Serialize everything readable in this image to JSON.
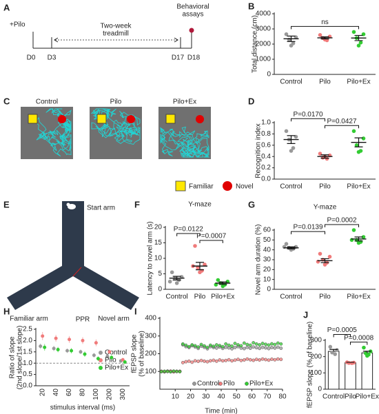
{
  "panel_labels": [
    "A",
    "B",
    "C",
    "D",
    "E",
    "F",
    "G",
    "H",
    "I",
    "J"
  ],
  "timeline": {
    "drug": "+Pilo",
    "training": [
      "Two-week",
      "treadmill"
    ],
    "test": [
      "Behavioral",
      "assays"
    ],
    "days": [
      "D0",
      "D3",
      "D17",
      "D18"
    ]
  },
  "tracks": {
    "panels": [
      "Control",
      "Pilo",
      "Pilo+Ex"
    ],
    "legend": [
      "Familiar",
      "Novel"
    ]
  },
  "maze": {
    "arms": [
      "Start arm",
      "Familiar arm",
      "Novel arm"
    ]
  },
  "chart_data": [
    {
      "type": "dot",
      "ylabel": "Total distance (cm)",
      "ylim": [
        0,
        4000
      ],
      "yticks": [
        0,
        1000,
        2000,
        3000,
        4000
      ],
      "annotations": [
        "ns"
      ],
      "groups": [
        {
          "name": "Control",
          "color": "#999999",
          "values": [
            2650,
            2450,
            2300,
            2050,
            1900
          ],
          "mean": 2350,
          "sem": 180
        },
        {
          "name": "Pilo",
          "color": "#f07b7b",
          "values": [
            2600,
            2500,
            2400,
            2250,
            2300
          ],
          "mean": 2410,
          "sem": 70
        },
        {
          "name": "Pilo+Ex",
          "color": "#33cc33",
          "values": [
            2800,
            2650,
            2400,
            2100,
            1900
          ],
          "mean": 2400,
          "sem": 170
        }
      ]
    },
    {
      "type": "dot",
      "ylabel": "Recognition index",
      "ylim": [
        0,
        1
      ],
      "yticks": [
        {
          "value": 0,
          "label": "0.0"
        },
        0.2,
        0.4,
        0.6,
        0.8,
        {
          "value": 1,
          "label": "1.0"
        }
      ],
      "annotations": [
        "P=0.0170",
        "P=0.0427"
      ],
      "groups": [
        {
          "name": "Control",
          "color": "#999999",
          "values": [
            0.85,
            0.75,
            0.7,
            0.55,
            0.5
          ],
          "mean": 0.7,
          "sem": 0.07
        },
        {
          "name": "Pilo",
          "color": "#f07b7b",
          "values": [
            0.45,
            0.42,
            0.38,
            0.36,
            0.4
          ],
          "mean": 0.4,
          "sem": 0.03
        },
        {
          "name": "Pilo+Ex",
          "color": "#33cc33",
          "values": [
            0.85,
            0.72,
            0.6,
            0.5,
            0.48
          ],
          "mean": 0.65,
          "sem": 0.08
        }
      ]
    },
    {
      "type": "dot",
      "title": "Y-maze",
      "ylabel": "Latency to novel arm (s)",
      "ylim": [
        0,
        20
      ],
      "yticks": [
        0,
        5,
        10,
        15,
        20
      ],
      "annotations": [
        "P=0.0122",
        "P=0.0007"
      ],
      "groups": [
        {
          "name": "Control",
          "color": "#999999",
          "values": [
            5.5,
            4,
            3.5,
            3,
            2,
            2.5
          ],
          "mean": 3.6,
          "sem": 0.6
        },
        {
          "name": "Pilo",
          "color": "#f07b7b",
          "values": [
            14,
            8,
            7,
            6,
            5.5,
            7.5
          ],
          "mean": 7.5,
          "sem": 1.2
        },
        {
          "name": "Pilo+Ex",
          "color": "#33cc33",
          "values": [
            3,
            2.5,
            2,
            1.5,
            1,
            1.5
          ],
          "mean": 2,
          "sem": 0.4
        }
      ]
    },
    {
      "type": "dot",
      "title": "Y-maze",
      "ylabel": "Novel arm duration (%)",
      "ylim": [
        0,
        60
      ],
      "yticks": [
        0,
        10,
        20,
        30,
        40,
        50,
        60
      ],
      "annotations": [
        "P=0.0139",
        "P=0.0002"
      ],
      "groups": [
        {
          "name": "Control",
          "color": "#999999",
          "values": [
            46,
            43,
            42,
            41,
            40,
            43
          ],
          "mean": 42,
          "sem": 1
        },
        {
          "name": "Pilo",
          "color": "#f07b7b",
          "values": [
            36,
            33,
            30,
            27,
            25,
            28
          ],
          "mean": 29,
          "sem": 2
        },
        {
          "name": "Pilo+Ex",
          "color": "#33cc33",
          "values": [
            60,
            53,
            50,
            48,
            47,
            50
          ],
          "mean": 51,
          "sem": 2
        }
      ]
    },
    {
      "type": "errorbar",
      "title": "PPR",
      "xlabel": "stimulus interval (ms)",
      "ylabel": [
        "Ratio of slope",
        "(2nd slope/1st slope)"
      ],
      "ylim": [
        0,
        2.5
      ],
      "yticks": [
        {
          "value": 0,
          "label": "0.0"
        },
        0.5,
        {
          "value": 1,
          "label": "1.0"
        },
        1.5,
        {
          "value": 2,
          "label": "2.0"
        },
        2.5
      ],
      "reference_line": 1,
      "categories": [
        "20",
        "40",
        "60",
        "80",
        "100",
        "200",
        "300"
      ],
      "series": [
        {
          "name": "Control",
          "color": "#999999",
          "values": [
            1.75,
            1.65,
            1.55,
            1.5,
            1.35,
            1.3,
            1.1
          ],
          "errors": [
            0.12,
            0.12,
            0.1,
            0.1,
            0.1,
            0.1,
            0.08
          ]
        },
        {
          "name": "Pilo",
          "color": "#f07b7b",
          "values": [
            2.2,
            2.1,
            2.05,
            2,
            1.9,
            1.5,
            1.15
          ],
          "errors": [
            0.18,
            0.15,
            0.15,
            0.15,
            0.15,
            0.1,
            0.08
          ]
        },
        {
          "name": "Pilo+Ex",
          "color": "#33cc33",
          "values": [
            1.7,
            1.6,
            1.55,
            1.4,
            1.2,
            1.25,
            1.05
          ],
          "errors": [
            0.15,
            0.12,
            0.12,
            0.12,
            0.1,
            0.1,
            0.08
          ]
        }
      ]
    },
    {
      "type": "scatter",
      "xlabel": "Time (min)",
      "ylabel": [
        "fEPSP slope",
        "(% of baseline)"
      ],
      "xlim": [
        0,
        80
      ],
      "xticks": [
        10,
        20,
        30,
        40,
        50,
        60,
        70,
        80
      ],
      "ylim": [
        0,
        400
      ],
      "yticks": [
        100,
        200,
        300,
        400
      ],
      "x": [
        1,
        3,
        5,
        7,
        9,
        11,
        13,
        15,
        17,
        19,
        21,
        23,
        25,
        27,
        29,
        31,
        33,
        35,
        37,
        39,
        41,
        43,
        45,
        47,
        49,
        51,
        53,
        55,
        57,
        59,
        61,
        63,
        65,
        67,
        69,
        71,
        73,
        75,
        77,
        79
      ],
      "series": [
        {
          "name": "Control",
          "color": "#999999",
          "values": [
            100,
            98,
            102,
            100,
            99,
            101,
            100,
            250,
            240,
            235,
            245,
            238,
            230,
            242,
            236,
            228,
            240,
            235,
            232,
            238,
            230,
            236,
            233,
            228,
            235,
            240,
            232,
            229,
            236,
            231,
            238,
            234,
            230,
            236,
            233,
            229,
            235,
            232,
            237,
            231
          ]
        },
        {
          "name": "Pilo",
          "color": "#f07b7b",
          "values": [
            101,
            99,
            100,
            102,
            98,
            100,
            101,
            150,
            155,
            158,
            152,
            160,
            157,
            162,
            158,
            155,
            160,
            163,
            158,
            165,
            160,
            162,
            166,
            160,
            164,
            168,
            162,
            165,
            170,
            166,
            163,
            168,
            165,
            170,
            167,
            164,
            169,
            166,
            170,
            168
          ]
        },
        {
          "name": "Pilo+Ex",
          "color": "#33cc33",
          "values": [
            99,
            101,
            100,
            98,
            102,
            100,
            99,
            255,
            248,
            240,
            250,
            245,
            238,
            252,
            244,
            236,
            248,
            242,
            250,
            246,
            240,
            255,
            248,
            243,
            258,
            250,
            245,
            260,
            252,
            248,
            262,
            255,
            250,
            258,
            253,
            249,
            256,
            252,
            260,
            255
          ]
        }
      ]
    },
    {
      "type": "bar",
      "ylabel": "fEPSP slope (% of baseline)",
      "ylim": [
        0,
        300
      ],
      "yticks": [
        0,
        100,
        200,
        300
      ],
      "annotations": [
        "P=0.0005",
        "P=0.0008"
      ],
      "groups": [
        {
          "name": "Control",
          "color": "#999999",
          "values": [
            260,
            240,
            225,
            215
          ],
          "mean": 232,
          "sem": 12
        },
        {
          "name": "Pilo",
          "color": "#f07b7b",
          "values": [
            165,
            163,
            161,
            160
          ],
          "mean": 163,
          "sem": 2
        },
        {
          "name": "Pilo+Ex",
          "color": "#33cc33",
          "values": [
            255,
            232,
            220,
            212,
            205
          ],
          "mean": 223,
          "sem": 10
        }
      ]
    }
  ]
}
